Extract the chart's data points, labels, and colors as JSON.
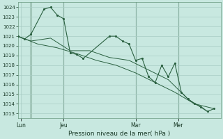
{
  "title": "Pression niveau de la mer( hPa )",
  "background_color": "#c8e8e0",
  "grid_color": "#a8ccc4",
  "line_color": "#2a6040",
  "vline_color": "#4a7a60",
  "ylim": [
    1012.5,
    1024.5
  ],
  "yticks": [
    1013,
    1014,
    1015,
    1016,
    1017,
    1018,
    1019,
    1020,
    1021,
    1022,
    1023,
    1024
  ],
  "xtick_labels": [
    "Lun",
    "Jeu",
    "Mar",
    "Mer"
  ],
  "xtick_positions": [
    0.5,
    7.0,
    18.0,
    24.5
  ],
  "vline_positions": [
    2.0,
    7.0,
    18.0,
    24.5
  ],
  "xlim": [
    0,
    31
  ],
  "series1_x": [
    0,
    1,
    2,
    4,
    5,
    6,
    7,
    8,
    9,
    10,
    14,
    15,
    16,
    17,
    18,
    19,
    20,
    21,
    22,
    23,
    24,
    25,
    26,
    27,
    28,
    29,
    30
  ],
  "series1_y": [
    1021.0,
    1020.7,
    1021.2,
    1023.8,
    1024.0,
    1023.2,
    1022.8,
    1019.3,
    1019.1,
    1018.7,
    1021.0,
    1021.0,
    1020.5,
    1020.2,
    1018.5,
    1018.7,
    1016.8,
    1016.2,
    1018.0,
    1016.8,
    1018.2,
    1015.2,
    1014.5,
    1014.0,
    1013.7,
    1013.2,
    1013.5
  ],
  "series2_x": [
    0,
    2,
    5,
    8,
    11,
    14,
    17,
    20,
    23,
    26,
    29
  ],
  "series2_y": [
    1021.0,
    1020.5,
    1020.8,
    1019.5,
    1019.5,
    1018.8,
    1018.5,
    1017.5,
    1016.5,
    1014.5,
    1013.2
  ],
  "series3_x": [
    0,
    3,
    6,
    9,
    12,
    15,
    18,
    21,
    24,
    27,
    30
  ],
  "series3_y": [
    1021.0,
    1020.2,
    1019.8,
    1019.2,
    1018.5,
    1018.0,
    1017.2,
    1016.2,
    1015.2,
    1014.0,
    1013.5
  ],
  "n_points": 31
}
